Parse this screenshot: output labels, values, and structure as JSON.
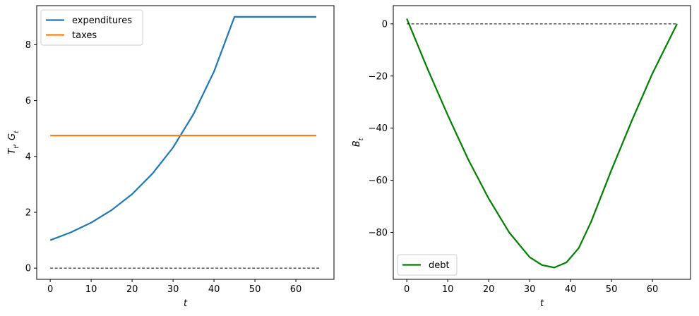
{
  "chart_data": [
    {
      "type": "line",
      "xlabel": "t",
      "ylabel": "T_t, G_t",
      "xlim": [
        -3.3,
        69.3
      ],
      "ylim": [
        -0.4,
        9.4
      ],
      "xticks": [
        0,
        10,
        20,
        30,
        40,
        50,
        60
      ],
      "yticks": [
        0,
        2,
        4,
        6,
        8
      ],
      "legend": "top-left",
      "grid": false,
      "series": [
        {
          "name": "expenditures",
          "color": "#1f77b4",
          "style": "solid",
          "x": [
            0,
            5,
            10,
            15,
            20,
            25,
            30,
            35,
            40,
            45,
            50,
            55,
            60,
            65
          ],
          "y": [
            1.0,
            1.28,
            1.63,
            2.08,
            2.65,
            3.39,
            4.32,
            5.52,
            7.04,
            9.0,
            9.0,
            9.0,
            9.0,
            9.0
          ]
        },
        {
          "name": "taxes",
          "color": "#ff7f0e",
          "style": "solid",
          "x": [
            0,
            65
          ],
          "y": [
            4.75,
            4.75
          ]
        },
        {
          "name": "",
          "color": "#000000",
          "style": "dashed",
          "x": [
            0,
            66
          ],
          "y": [
            0,
            0
          ]
        }
      ]
    },
    {
      "type": "line",
      "xlabel": "t",
      "ylabel": "B_t",
      "xlim": [
        -3.3,
        69.3
      ],
      "ylim": [
        -98,
        7
      ],
      "xticks": [
        0,
        10,
        20,
        30,
        40,
        50,
        60
      ],
      "yticks": [
        0,
        -20,
        -40,
        -60,
        -80
      ],
      "legend": "bottom-left",
      "grid": false,
      "series": [
        {
          "name": "debt",
          "color": "#008000",
          "style": "solid",
          "x": [
            0,
            5,
            10,
            15,
            20,
            25,
            30,
            33,
            36,
            39,
            42,
            45,
            50,
            55,
            60,
            66
          ],
          "y": [
            2,
            -17,
            -35,
            -52,
            -67,
            -80,
            -89.5,
            -92.5,
            -93.5,
            -91.5,
            -86,
            -76,
            -56,
            -37,
            -19,
            0
          ]
        },
        {
          "name": "",
          "color": "#000000",
          "style": "dashed",
          "x": [
            0,
            66
          ],
          "y": [
            0,
            0
          ]
        }
      ]
    }
  ]
}
